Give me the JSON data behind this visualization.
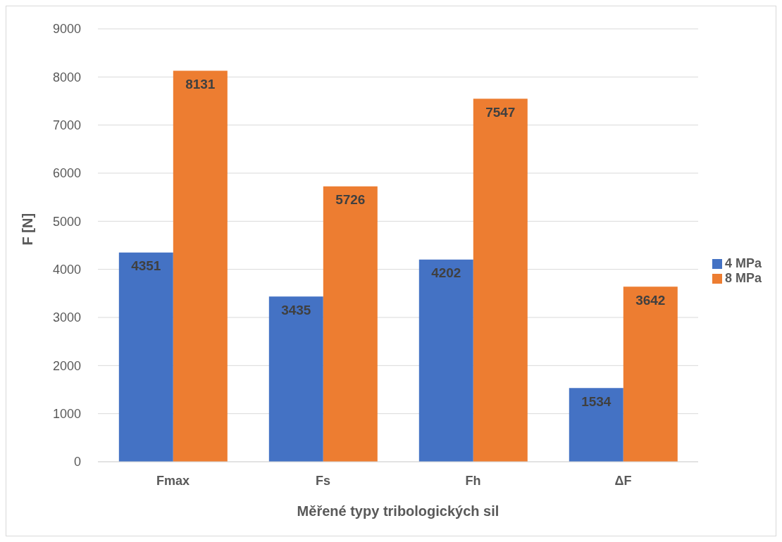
{
  "chart_data": {
    "type": "bar",
    "xlabel": "Měřené typy tribologických sil",
    "ylabel": "F  [N]",
    "categories": [
      "Fmax",
      "Fs",
      "Fh",
      "ΔF"
    ],
    "series": [
      {
        "name": "4 MPa",
        "color": "#4472c4",
        "values": [
          4351,
          3435,
          4202,
          1534
        ]
      },
      {
        "name": "8 MPa",
        "color": "#ed7d31",
        "values": [
          8131,
          5726,
          7547,
          3642
        ]
      }
    ],
    "ylim": [
      0,
      9000
    ],
    "yticks": [
      0,
      1000,
      2000,
      3000,
      4000,
      5000,
      6000,
      7000,
      8000,
      9000
    ],
    "grid": "y",
    "legend": "right",
    "data_labels": true
  }
}
